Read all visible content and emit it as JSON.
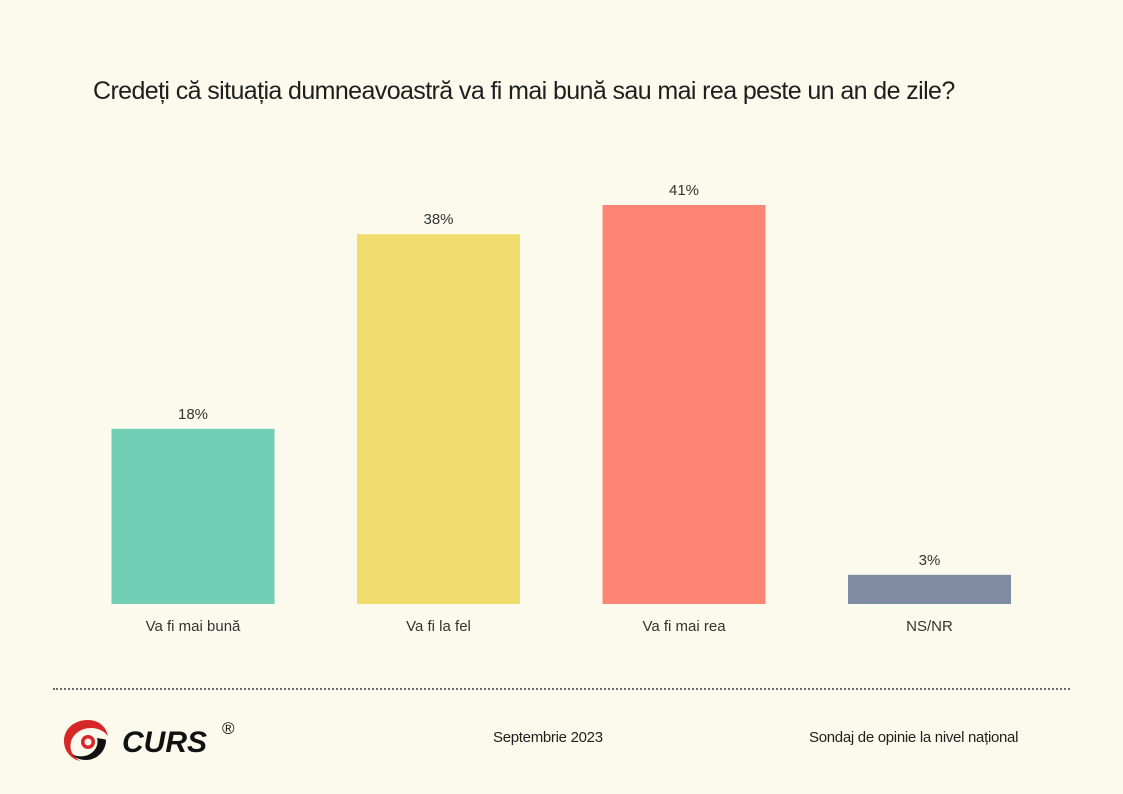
{
  "title": "Credeți că situația dumneavoastră va fi mai bună sau mai rea peste un an de zile?",
  "chart_data": {
    "type": "bar",
    "categories": [
      "Va fi mai bună",
      "Va fi la fel",
      "Va fi mai rea",
      "NS/NR"
    ],
    "values": [
      18,
      38,
      41,
      3
    ],
    "value_labels": [
      "18%",
      "38%",
      "41%",
      "3%"
    ],
    "colors": [
      "#71cfb5",
      "#f0dc6c",
      "#fd8575",
      "#7f8ca1"
    ],
    "ylim": [
      0,
      41
    ],
    "grid": false,
    "legend": "none"
  },
  "footer": {
    "logo_text": "CURS",
    "registered": "®",
    "date": "Septembrie 2023",
    "source": "Sondaj de opinie la nivel național"
  }
}
